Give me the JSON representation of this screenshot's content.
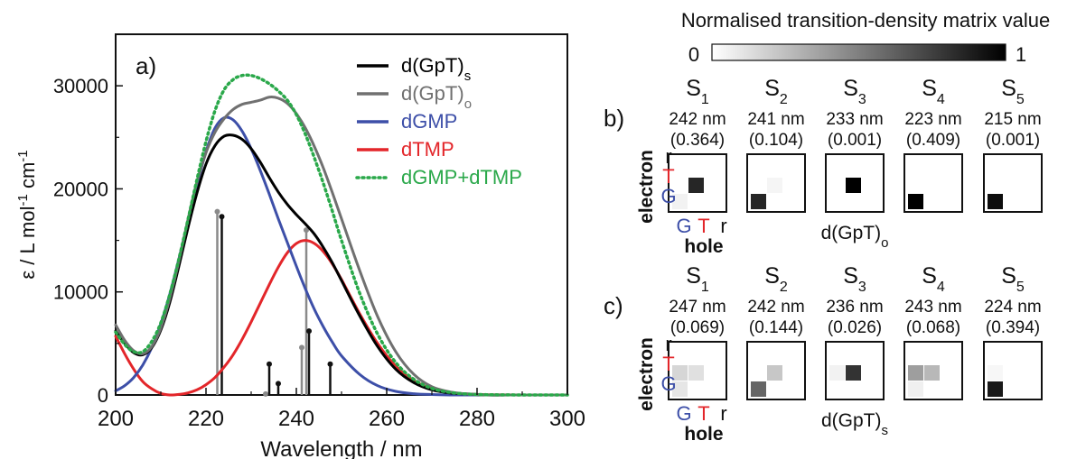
{
  "chart_data": [
    {
      "type": "line",
      "panel": "a)",
      "xlabel": "Wavelength / nm",
      "ylabel": "ε / L mol-1 cm-1",
      "xlim": [
        200,
        300
      ],
      "ylim": [
        0,
        35000
      ],
      "xticks": [
        200,
        220,
        240,
        260,
        280,
        300
      ],
      "yticks": [
        0,
        10000,
        20000,
        30000
      ],
      "legend_position": "top-right",
      "series": [
        {
          "name": "d(GpT)s",
          "color": "#000000",
          "style": "solid",
          "x": [
            200,
            202,
            204,
            206,
            208,
            210,
            212,
            214,
            216,
            218,
            220,
            222,
            224,
            226,
            228,
            230,
            232,
            234,
            236,
            238,
            240,
            242,
            244,
            246,
            248,
            250,
            254,
            258,
            262,
            266,
            270,
            274,
            278,
            282,
            290,
            300
          ],
          "y": [
            6200,
            5000,
            4100,
            3900,
            4600,
            6300,
            9000,
            12500,
            16200,
            19600,
            22400,
            24200,
            25100,
            25200,
            24800,
            23900,
            22600,
            21100,
            19700,
            18500,
            17500,
            16600,
            15600,
            14300,
            12800,
            11100,
            7700,
            4700,
            2500,
            1200,
            500,
            200,
            100,
            0,
            0,
            0
          ]
        },
        {
          "name": "d(GpT)o",
          "color": "#707070",
          "style": "solid",
          "x": [
            200,
            202,
            204,
            206,
            208,
            210,
            212,
            214,
            216,
            218,
            220,
            222,
            224,
            226,
            228,
            230,
            232,
            234,
            236,
            238,
            240,
            242,
            244,
            246,
            248,
            250,
            254,
            258,
            262,
            266,
            270,
            274,
            278,
            282,
            290,
            300
          ],
          "y": [
            6800,
            5300,
            4300,
            4000,
            4700,
            6500,
            9400,
            13000,
            17000,
            20700,
            23500,
            25500,
            26800,
            27700,
            28200,
            28400,
            28600,
            28900,
            28800,
            28300,
            27300,
            25900,
            24100,
            22000,
            19600,
            17100,
            12100,
            7600,
            4200,
            2000,
            800,
            300,
            100,
            0,
            0,
            0
          ]
        },
        {
          "name": "dGMP",
          "color": "#3d4fa8",
          "style": "solid",
          "x": [
            200,
            202,
            204,
            206,
            208,
            210,
            212,
            214,
            216,
            218,
            220,
            222,
            224,
            226,
            228,
            230,
            232,
            234,
            236,
            238,
            240,
            242,
            244,
            246,
            248,
            250,
            254,
            258,
            262,
            266,
            270,
            274,
            278,
            282,
            290,
            300
          ],
          "y": [
            400,
            900,
            1700,
            2900,
            4600,
            6900,
            9800,
            13200,
            16800,
            20400,
            23600,
            25900,
            26900,
            26700,
            25600,
            23900,
            21800,
            19500,
            17100,
            14800,
            12500,
            10300,
            8300,
            6600,
            5100,
            3800,
            2000,
            900,
            350,
            120,
            40,
            0,
            0,
            0,
            0,
            0
          ]
        },
        {
          "name": "dTMP",
          "color": "#e3262a",
          "style": "solid",
          "x": [
            200,
            202,
            204,
            206,
            208,
            210,
            212,
            214,
            216,
            218,
            220,
            222,
            224,
            226,
            228,
            230,
            232,
            234,
            236,
            238,
            240,
            242,
            244,
            246,
            248,
            250,
            254,
            258,
            262,
            266,
            270,
            274,
            278,
            282,
            290,
            300
          ],
          "y": [
            5700,
            4000,
            2500,
            1300,
            600,
            150,
            0,
            50,
            200,
            500,
            1000,
            1700,
            2700,
            3900,
            5400,
            7100,
            8900,
            10700,
            12400,
            13800,
            14700,
            15000,
            14700,
            13900,
            12700,
            11200,
            7900,
            5000,
            2800,
            1400,
            600,
            250,
            90,
            30,
            0,
            0
          ]
        },
        {
          "name": "dGMP+dTMP",
          "color": "#2aa84a",
          "style": "dotted",
          "x": [
            200,
            202,
            204,
            206,
            208,
            210,
            212,
            214,
            216,
            218,
            220,
            222,
            224,
            226,
            228,
            230,
            232,
            234,
            236,
            238,
            240,
            242,
            244,
            246,
            248,
            250,
            254,
            258,
            262,
            266,
            270,
            274,
            278,
            282,
            290,
            300
          ],
          "y": [
            6100,
            4900,
            4200,
            4200,
            5200,
            7000,
            9800,
            13200,
            17000,
            20900,
            24600,
            27600,
            29600,
            30600,
            31000,
            31000,
            30700,
            30200,
            29500,
            28600,
            27200,
            25300,
            23000,
            20500,
            17800,
            15000,
            9900,
            5900,
            3150,
            1520,
            640,
            250,
            90,
            30,
            0,
            0
          ]
        }
      ],
      "stick_spectra": [
        {
          "name": "d(GpT)o",
          "color": "#8a8a8a",
          "x": [
            222.5,
            233.2,
            241.2,
            242.2
          ],
          "y": [
            17800,
            100,
            4600,
            16000
          ]
        },
        {
          "name": "d(GpT)s",
          "color": "#111111",
          "x": [
            223.5,
            234.0,
            236.0,
            242.8,
            247.5
          ],
          "y": [
            17300,
            3000,
            1100,
            6200,
            3000
          ]
        }
      ]
    },
    {
      "type": "heatmap",
      "title": "Normalised transition-density matrix value",
      "colorbar": {
        "min_label": "0",
        "max_label": "1"
      },
      "axis_labels": {
        "row_title": "electron",
        "col_title": "hole",
        "rows": [
          "r",
          "T",
          "G"
        ],
        "cols": [
          "G",
          "T",
          "r"
        ]
      },
      "label_colors": {
        "G": "#3d4fa8",
        "T": "#e3262a",
        "r": "#111111"
      },
      "panels": [
        {
          "label": "b)",
          "molecule": "d(GpT)",
          "molecule_subscript": "o",
          "states": [
            {
              "state": "S",
              "index": "1",
              "wavelength": "242 nm",
              "osc": "(0.364)",
              "matrix": [
                [
                  0,
                  0,
                  0
                ],
                [
                  0,
                  0.85,
                  0
                ],
                [
                  0.05,
                  0,
                  0
                ]
              ]
            },
            {
              "state": "S",
              "index": "2",
              "wavelength": "241 nm",
              "osc": "(0.104)",
              "matrix": [
                [
                  0,
                  0,
                  0
                ],
                [
                  0,
                  0.04,
                  0
                ],
                [
                  0.85,
                  0,
                  0
                ]
              ]
            },
            {
              "state": "S",
              "index": "3",
              "wavelength": "233 nm",
              "osc": "(0.001)",
              "matrix": [
                [
                  0,
                  0,
                  0
                ],
                [
                  0,
                  1.0,
                  0
                ],
                [
                  0,
                  0,
                  0
                ]
              ]
            },
            {
              "state": "S",
              "index": "4",
              "wavelength": "223 nm",
              "osc": "(0.409)",
              "matrix": [
                [
                  0,
                  0,
                  0
                ],
                [
                  0,
                  0,
                  0
                ],
                [
                  1.0,
                  0,
                  0
                ]
              ]
            },
            {
              "state": "S",
              "index": "5",
              "wavelength": "215 nm",
              "osc": "(0.001)",
              "matrix": [
                [
                  0,
                  0,
                  0
                ],
                [
                  0,
                  0,
                  0
                ],
                [
                  0.95,
                  0,
                  0
                ]
              ]
            }
          ]
        },
        {
          "label": "c)",
          "molecule": "d(GpT)",
          "molecule_subscript": "s",
          "states": [
            {
              "state": "S",
              "index": "1",
              "wavelength": "247 nm",
              "osc": "(0.069)",
              "matrix": [
                [
                  0,
                  0,
                  0
                ],
                [
                  0.16,
                  0.12,
                  0
                ],
                [
                  0.1,
                  0,
                  0
                ]
              ]
            },
            {
              "state": "S",
              "index": "2",
              "wavelength": "242 nm",
              "osc": "(0.144)",
              "matrix": [
                [
                  0,
                  0,
                  0
                ],
                [
                  0,
                  0.22,
                  0
                ],
                [
                  0.6,
                  0,
                  0
                ]
              ]
            },
            {
              "state": "S",
              "index": "3",
              "wavelength": "236 nm",
              "osc": "(0.026)",
              "matrix": [
                [
                  0,
                  0,
                  0
                ],
                [
                  0.05,
                  0.8,
                  0
                ],
                [
                  0,
                  0,
                  0
                ]
              ]
            },
            {
              "state": "S",
              "index": "4",
              "wavelength": "243 nm",
              "osc": "(0.068)",
              "matrix": [
                [
                  0,
                  0,
                  0
                ],
                [
                  0.38,
                  0.28,
                  0
                ],
                [
                  0.06,
                  0,
                  0
                ]
              ]
            },
            {
              "state": "S",
              "index": "5",
              "wavelength": "224 nm",
              "osc": "(0.394)",
              "matrix": [
                [
                  0,
                  0,
                  0
                ],
                [
                  0.03,
                  0,
                  0
                ],
                [
                  0.9,
                  0,
                  0
                ]
              ]
            }
          ]
        }
      ]
    }
  ]
}
